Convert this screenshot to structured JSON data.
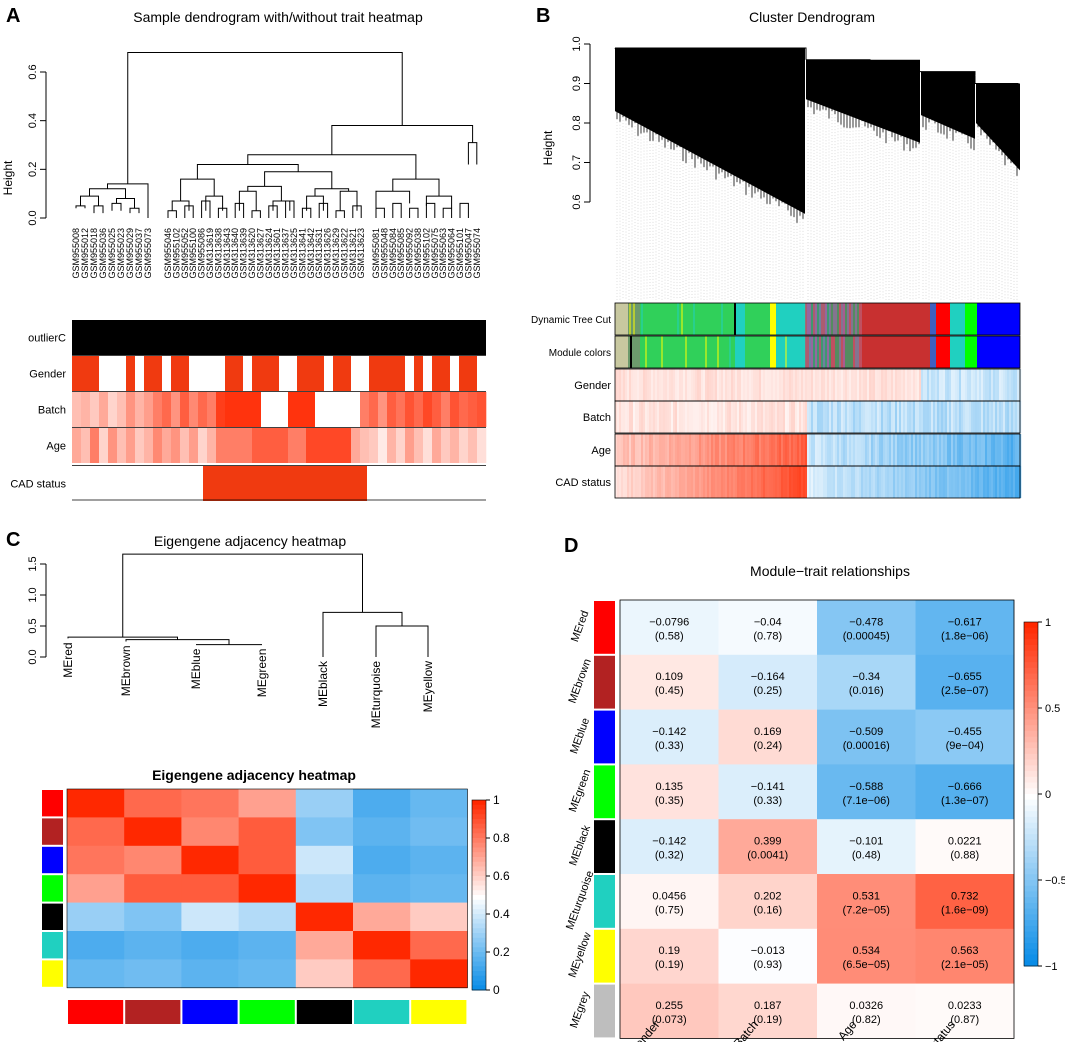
{
  "panels": {
    "A": {
      "letter": "A",
      "title": "Sample dendrogram with/without trait heatmap",
      "ylabel": "Height",
      "yticks": [
        "0.0",
        "0.2",
        "0.4",
        "0.6"
      ],
      "samples_left": [
        "GSM955008",
        "GSM955012",
        "GSM955018",
        "GSM955036",
        "GSM955025",
        "GSM955023",
        "GSM955029",
        "GSM955037",
        "GSM955073"
      ],
      "samples_mid": [
        "GSM955046",
        "GSM955102",
        "GSM955052",
        "GSM955100",
        "GSM955086",
        "GSM313619",
        "GSM313638",
        "GSM313643",
        "GSM313640",
        "GSM313639",
        "GSM313620",
        "GSM313627",
        "GSM313624",
        "GSM313601",
        "GSM313637",
        "GSM313625",
        "GSM313641",
        "GSM313642",
        "GSM313631",
        "GSM313626",
        "GSM313629",
        "GSM313622",
        "GSM313621",
        "GSM313623"
      ],
      "samples_right": [
        "GSM955081",
        "GSM955048",
        "GSM955084",
        "GSM955085",
        "GSM955092",
        "GSM955038",
        "GSM955102",
        "GSM955075",
        "GSM955063",
        "GSM955064",
        "GSM955101",
        "GSM955047",
        "GSM955074"
      ],
      "trait_rows": [
        "outlierC",
        "Gender",
        "Batch",
        "Age",
        "CAD status"
      ]
    },
    "B": {
      "letter": "B",
      "title": "Cluster Dendrogram",
      "ylabel": "Height",
      "yticks": [
        "0.6",
        "0.7",
        "0.8",
        "0.9",
        "1.0"
      ],
      "rows": [
        "Dynamic Tree Cut",
        "Module colors",
        "Gender",
        "Batch",
        "Age",
        "CAD status"
      ]
    },
    "C": {
      "letter": "C",
      "title": "Eigengene adjacency heatmap",
      "heat_title": "Eigengene adjacency heatmap",
      "yticks": [
        "0.0",
        "0.5",
        "1.0",
        "1.5"
      ],
      "leaf_labels": [
        "MEred",
        "MEbrown",
        "MEblue",
        "MEgreen",
        "MEblack",
        "MEturquoise",
        "MEyellow"
      ],
      "legend_ticks": [
        "0",
        "0.2",
        "0.4",
        "0.6",
        "0.8",
        "1"
      ]
    },
    "D": {
      "letter": "D",
      "title": "Module−trait relationships",
      "legend_ticks": [
        "1",
        "0.5",
        "0",
        "−0.5",
        "−1"
      ]
    }
  },
  "chart_data": [
    {
      "type": "heatmap",
      "title": "Eigengene adjacency heatmap",
      "rows": [
        "MEred",
        "MEbrown",
        "MEblue",
        "MEgreen",
        "MEblack",
        "MEturquoise",
        "MEyellow"
      ],
      "cols": [
        "MEred",
        "MEbrown",
        "MEblue",
        "MEgreen",
        "MEblack",
        "MEturquoise",
        "MEyellow"
      ],
      "values": [
        [
          1.0,
          0.85,
          0.82,
          0.72,
          0.3,
          0.15,
          0.2
        ],
        [
          0.85,
          1.0,
          0.78,
          0.88,
          0.25,
          0.18,
          0.22
        ],
        [
          0.82,
          0.78,
          1.0,
          0.88,
          0.4,
          0.15,
          0.18
        ],
        [
          0.72,
          0.88,
          0.88,
          1.0,
          0.35,
          0.18,
          0.2
        ],
        [
          0.3,
          0.25,
          0.4,
          0.35,
          1.0,
          0.7,
          0.62
        ],
        [
          0.15,
          0.18,
          0.15,
          0.18,
          0.7,
          1.0,
          0.85
        ],
        [
          0.2,
          0.22,
          0.18,
          0.2,
          0.62,
          0.85,
          1.0
        ]
      ],
      "row_colors": [
        "#ff0000",
        "#b22222",
        "#0000ff",
        "#00ff00",
        "#000000",
        "#20d0c0",
        "#ffff00"
      ],
      "range": [
        0,
        1
      ]
    },
    {
      "type": "heatmap",
      "title": "Module−trait relationships",
      "rows": [
        "MEred",
        "MEbrown",
        "MEblue",
        "MEgreen",
        "MEblack",
        "MEturquoise",
        "MEyellow",
        "MEgrey"
      ],
      "row_colors": [
        "#ff0000",
        "#b22222",
        "#0000ff",
        "#00ff00",
        "#000000",
        "#20d0c0",
        "#ffff00",
        "#bebebe"
      ],
      "cols": [
        "Gender",
        "Batch",
        "Age",
        "CAD status"
      ],
      "cells": [
        [
          {
            "r": "−0.0796",
            "p": "(0.58)"
          },
          {
            "r": "−0.04",
            "p": "(0.78)"
          },
          {
            "r": "−0.478",
            "p": "(0.00045)"
          },
          {
            "r": "−0.617",
            "p": "(1.8e−06)"
          }
        ],
        [
          {
            "r": "0.109",
            "p": "(0.45)"
          },
          {
            "r": "−0.164",
            "p": "(0.25)"
          },
          {
            "r": "−0.34",
            "p": "(0.016)"
          },
          {
            "r": "−0.655",
            "p": "(2.5e−07)"
          }
        ],
        [
          {
            "r": "−0.142",
            "p": "(0.33)"
          },
          {
            "r": "0.169",
            "p": "(0.24)"
          },
          {
            "r": "−0.509",
            "p": "(0.00016)"
          },
          {
            "r": "−0.455",
            "p": "(9e−04)"
          }
        ],
        [
          {
            "r": "0.135",
            "p": "(0.35)"
          },
          {
            "r": "−0.141",
            "p": "(0.33)"
          },
          {
            "r": "−0.588",
            "p": "(7.1e−06)"
          },
          {
            "r": "−0.666",
            "p": "(1.3e−07)"
          }
        ],
        [
          {
            "r": "−0.142",
            "p": "(0.32)"
          },
          {
            "r": "0.399",
            "p": "(0.0041)"
          },
          {
            "r": "−0.101",
            "p": "(0.48)"
          },
          {
            "r": "0.0221",
            "p": "(0.88)"
          }
        ],
        [
          {
            "r": "0.0456",
            "p": "(0.75)"
          },
          {
            "r": "0.202",
            "p": "(0.16)"
          },
          {
            "r": "0.531",
            "p": "(7.2e−05)"
          },
          {
            "r": "0.732",
            "p": "(1.6e−09)"
          }
        ],
        [
          {
            "r": "0.19",
            "p": "(0.19)"
          },
          {
            "r": "−0.013",
            "p": "(0.93)"
          },
          {
            "r": "0.534",
            "p": "(6.5e−05)"
          },
          {
            "r": "0.563",
            "p": "(2.1e−05)"
          }
        ],
        [
          {
            "r": "0.255",
            "p": "(0.073)"
          },
          {
            "r": "0.187",
            "p": "(0.19)"
          },
          {
            "r": "0.0326",
            "p": "(0.82)"
          },
          {
            "r": "0.0233",
            "p": "(0.87)"
          }
        ]
      ],
      "values": [
        [
          -0.0796,
          -0.04,
          -0.478,
          -0.617
        ],
        [
          0.109,
          -0.164,
          -0.34,
          -0.655
        ],
        [
          -0.142,
          0.169,
          -0.509,
          -0.455
        ],
        [
          0.135,
          -0.141,
          -0.588,
          -0.666
        ],
        [
          -0.142,
          0.399,
          -0.101,
          0.0221
        ],
        [
          0.0456,
          0.202,
          0.531,
          0.732
        ],
        [
          0.19,
          -0.013,
          0.534,
          0.563
        ],
        [
          0.255,
          0.187,
          0.0326,
          0.0233
        ]
      ],
      "range": [
        -1,
        1
      ]
    }
  ]
}
